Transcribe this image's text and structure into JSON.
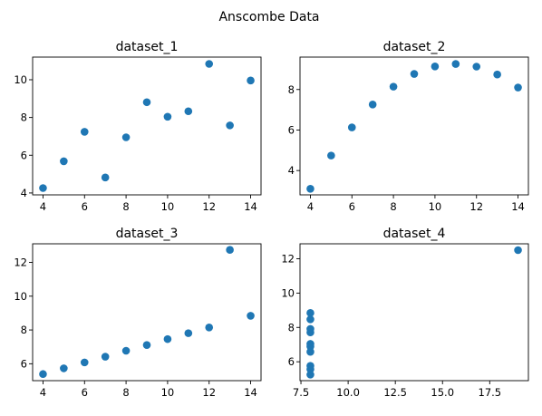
{
  "figure": {
    "suptitle": "Anscombe Data"
  },
  "colors": {
    "marker": "#1f77b4",
    "axes": "#000000",
    "background": "#ffffff"
  },
  "chart_data": [
    {
      "type": "scatter",
      "title": "dataset_1",
      "xlabel": "",
      "ylabel": "",
      "grid": false,
      "x": [
        10,
        8,
        13,
        9,
        11,
        14,
        6,
        4,
        12,
        7,
        5
      ],
      "y": [
        8.04,
        6.95,
        7.58,
        8.81,
        8.33,
        9.96,
        7.24,
        4.26,
        10.84,
        4.82,
        5.68
      ],
      "xlim": [
        3.5,
        14.5
      ],
      "ylim": [
        3.9,
        11.2
      ],
      "xticks": [
        4,
        6,
        8,
        10,
        12,
        14
      ],
      "xtick_labels": [
        "4",
        "6",
        "8",
        "10",
        "12",
        "14"
      ],
      "yticks": [
        4,
        6,
        8,
        10
      ],
      "ytick_labels": [
        "4",
        "6",
        "8",
        "10"
      ]
    },
    {
      "type": "scatter",
      "title": "dataset_2",
      "xlabel": "",
      "ylabel": "",
      "grid": false,
      "x": [
        10,
        8,
        13,
        9,
        11,
        14,
        6,
        4,
        12,
        7,
        5
      ],
      "y": [
        9.14,
        8.14,
        8.74,
        8.77,
        9.26,
        8.1,
        6.13,
        3.1,
        9.13,
        7.26,
        4.74
      ],
      "xlim": [
        3.5,
        14.5
      ],
      "ylim": [
        2.8,
        9.6
      ],
      "xticks": [
        4,
        6,
        8,
        10,
        12,
        14
      ],
      "xtick_labels": [
        "4",
        "6",
        "8",
        "10",
        "12",
        "14"
      ],
      "yticks": [
        4,
        6,
        8
      ],
      "ytick_labels": [
        "4",
        "6",
        "8"
      ]
    },
    {
      "type": "scatter",
      "title": "dataset_3",
      "xlabel": "",
      "ylabel": "",
      "grid": false,
      "x": [
        10,
        8,
        13,
        9,
        11,
        14,
        6,
        4,
        12,
        7,
        5
      ],
      "y": [
        7.46,
        6.77,
        12.74,
        7.11,
        7.81,
        8.84,
        6.08,
        5.39,
        8.15,
        6.42,
        5.73
      ],
      "xlim": [
        3.5,
        14.5
      ],
      "ylim": [
        5.0,
        13.1
      ],
      "xticks": [
        4,
        6,
        8,
        10,
        12,
        14
      ],
      "xtick_labels": [
        "4",
        "6",
        "8",
        "10",
        "12",
        "14"
      ],
      "yticks": [
        6,
        8,
        10,
        12
      ],
      "ytick_labels": [
        "6",
        "8",
        "10",
        "12"
      ]
    },
    {
      "type": "scatter",
      "title": "dataset_4",
      "xlabel": "",
      "ylabel": "",
      "grid": false,
      "x": [
        8,
        8,
        8,
        8,
        8,
        8,
        8,
        19,
        8,
        8,
        8
      ],
      "y": [
        6.58,
        5.76,
        7.71,
        8.84,
        8.47,
        7.04,
        5.25,
        12.5,
        5.56,
        7.91,
        6.89
      ],
      "xlim": [
        7.45,
        19.55
      ],
      "ylim": [
        4.9,
        12.87
      ],
      "xticks": [
        7.5,
        10,
        12.5,
        15,
        17.5
      ],
      "xtick_labels": [
        "7.5",
        "10.0",
        "12.5",
        "15.0",
        "17.5"
      ],
      "yticks": [
        6,
        8,
        10,
        12
      ],
      "ytick_labels": [
        "6",
        "8",
        "10",
        "12"
      ]
    }
  ]
}
